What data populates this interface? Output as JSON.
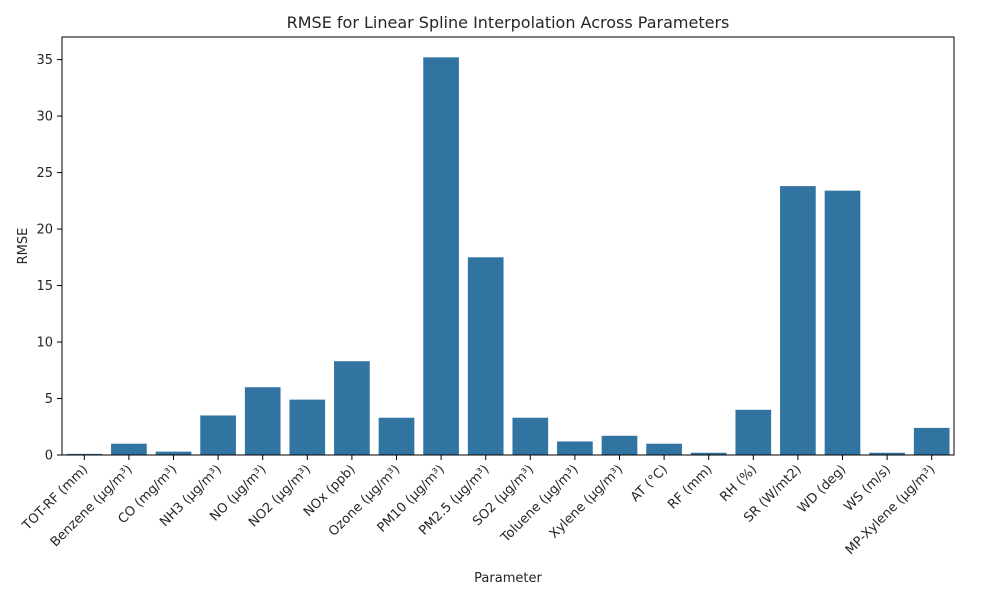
{
  "chart_data": {
    "type": "bar",
    "title": "RMSE for Linear Spline Interpolation Across Parameters",
    "xlabel": "Parameter",
    "ylabel": "RMSE",
    "categories": [
      "TOT-RF (mm)",
      "Benzene (µg/m³)",
      "CO (mg/m³)",
      "NH3 (µg/m³)",
      "NO (µg/m³)",
      "NO2 (µg/m³)",
      "NOx (ppb)",
      "Ozone (µg/m³)",
      "PM10 (µg/m³)",
      "PM2.5 (µg/m³)",
      "SO2 (µg/m³)",
      "Toluene (µg/m³)",
      "Xylene (µg/m³)",
      "AT (°C)",
      "RF (mm)",
      "RH (%)",
      "SR (W/mt2)",
      "WD (deg)",
      "WS (m/s)",
      "MP-Xylene (µg/m³)"
    ],
    "values": [
      0.1,
      1.0,
      0.3,
      3.5,
      6.0,
      4.9,
      8.3,
      3.3,
      35.2,
      17.5,
      3.3,
      1.2,
      1.7,
      1.0,
      0.2,
      4.0,
      23.8,
      23.4,
      0.2,
      2.4
    ],
    "ylim": [
      0,
      37.0
    ],
    "yticks": [
      0,
      5,
      10,
      15,
      20,
      25,
      30,
      35
    ],
    "bar_color": "#3274a1",
    "grid": false,
    "legend": "none"
  }
}
